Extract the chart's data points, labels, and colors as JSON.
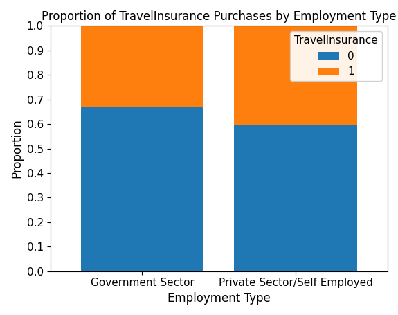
{
  "title": "Proportion of TravelInsurance Purchases by Employment Type",
  "xlabel": "Employment Type",
  "ylabel": "Proportion",
  "categories": [
    "Government Sector",
    "Private Sector/Self Employed"
  ],
  "series": {
    "0": [
      0.6699,
      0.5985
    ],
    "1": [
      0.3301,
      0.4015
    ]
  },
  "colors": {
    "0": "#1f77b4",
    "1": "#ff7f0e"
  },
  "legend_title": "TravelInsurance",
  "ylim": [
    0.0,
    1.0
  ],
  "yticks": [
    0.0,
    0.1,
    0.2,
    0.3,
    0.4,
    0.5,
    0.6,
    0.7,
    0.8,
    0.9,
    1.0
  ],
  "bar_width": 0.8,
  "title_fontsize": 12,
  "label_fontsize": 12,
  "tick_fontsize": 11,
  "legend_fontsize": 11
}
